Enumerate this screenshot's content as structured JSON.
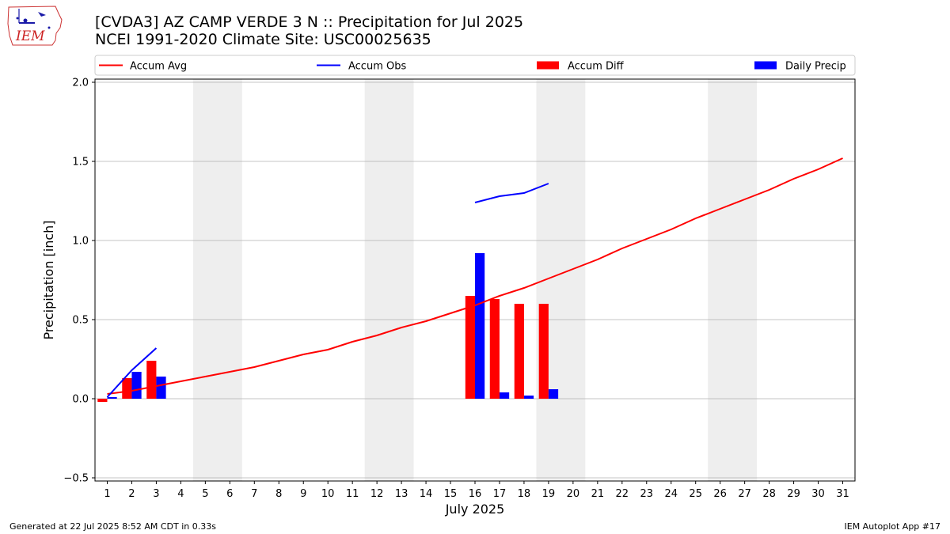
{
  "header": {
    "title_line1": "[CVDA3] AZ CAMP VERDE 3 N :: Precipitation for Jul 2025",
    "title_line2": "NCEI 1991-2020 Climate Site: USC00025635"
  },
  "logo": {
    "text": "IEM"
  },
  "footer": {
    "generated": "Generated at 22 Jul 2025 8:52 AM CDT in 0.33s",
    "app": "IEM Autoplot App #17"
  },
  "colors": {
    "avg": "#ff0000",
    "obs": "#0000ff",
    "diff": "#ff0000",
    "daily": "#0000ff",
    "weekend": "#eeeeee",
    "grid": "#b0b0b0"
  },
  "chart_data": {
    "type": "bar",
    "xlabel": "July 2025",
    "ylabel": "Precipitation [inch]",
    "xlim": [
      0.5,
      31.5
    ],
    "ylim": [
      -0.52,
      2.02
    ],
    "yticks": [
      -0.5,
      0.0,
      0.5,
      1.0,
      1.5,
      2.0
    ],
    "ytick_labels": [
      "−0.5",
      "0.0",
      "0.5",
      "1.0",
      "1.5",
      "2.0"
    ],
    "days": [
      1,
      2,
      3,
      4,
      5,
      6,
      7,
      8,
      9,
      10,
      11,
      12,
      13,
      14,
      15,
      16,
      17,
      18,
      19,
      20,
      21,
      22,
      23,
      24,
      25,
      26,
      27,
      28,
      29,
      30,
      31
    ],
    "weekend_spans": [
      [
        4.5,
        6.5
      ],
      [
        11.5,
        13.5
      ],
      [
        18.5,
        20.5
      ],
      [
        25.5,
        27.5
      ]
    ],
    "legend": [
      "Accum Avg",
      "Accum Obs",
      "Accum Diff",
      "Daily Precip"
    ],
    "series": [
      {
        "name": "Accum Avg",
        "kind": "line",
        "x": [
          1,
          2,
          3,
          4,
          5,
          6,
          7,
          8,
          9,
          10,
          11,
          12,
          13,
          14,
          15,
          16,
          17,
          18,
          19,
          20,
          21,
          22,
          23,
          24,
          25,
          26,
          27,
          28,
          29,
          30,
          31
        ],
        "values": [
          0.03,
          0.05,
          0.08,
          0.11,
          0.14,
          0.17,
          0.2,
          0.24,
          0.28,
          0.31,
          0.36,
          0.4,
          0.45,
          0.49,
          0.54,
          0.59,
          0.65,
          0.7,
          0.76,
          0.82,
          0.88,
          0.95,
          1.01,
          1.07,
          1.14,
          1.2,
          1.26,
          1.32,
          1.39,
          1.45,
          1.52
        ]
      },
      {
        "name": "Accum Obs",
        "kind": "line",
        "segments": [
          {
            "x": [
              1,
              2,
              3
            ],
            "values": [
              0.01,
              0.18,
              0.32
            ]
          },
          {
            "x": [
              16,
              17,
              18,
              19
            ],
            "values": [
              1.24,
              1.28,
              1.3,
              1.36
            ]
          }
        ]
      },
      {
        "name": "Accum Diff",
        "kind": "bar",
        "x": [
          1,
          2,
          3,
          16,
          17,
          18,
          19
        ],
        "values": [
          -0.02,
          0.13,
          0.24,
          0.65,
          0.63,
          0.6,
          0.6
        ]
      },
      {
        "name": "Daily Precip",
        "kind": "bar",
        "x": [
          1,
          2,
          3,
          16,
          17,
          18,
          19
        ],
        "values": [
          0.01,
          0.17,
          0.14,
          0.92,
          0.04,
          0.02,
          0.06
        ]
      }
    ]
  }
}
